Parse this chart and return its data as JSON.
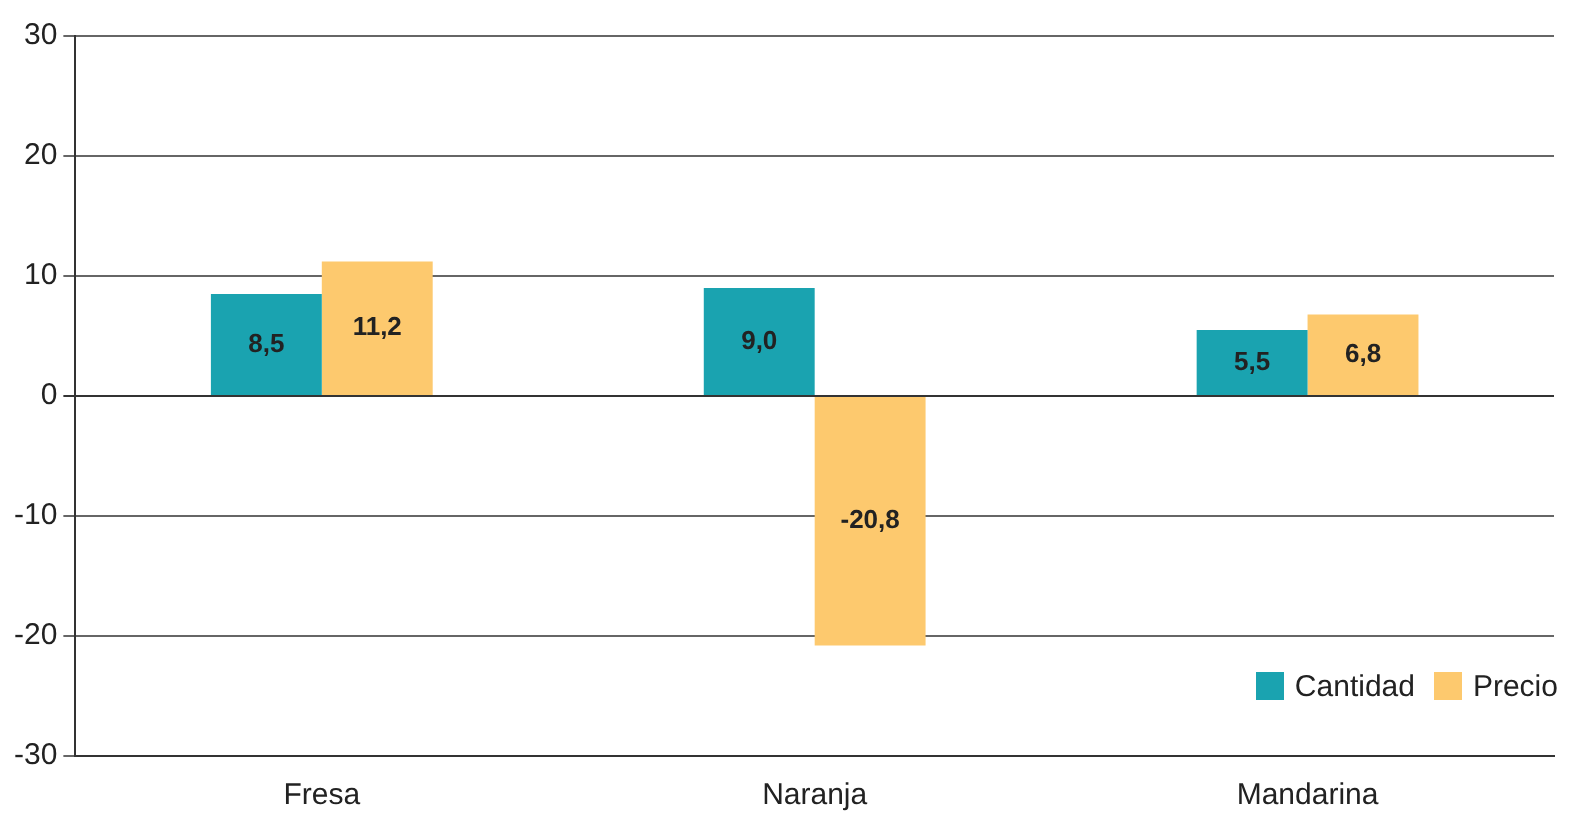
{
  "chart_data": {
    "type": "bar",
    "categories": [
      "Fresa",
      "Naranja",
      "Mandarina"
    ],
    "series": [
      {
        "name": "Cantidad",
        "color": "#1aa3b0",
        "values": [
          8.5,
          9.0,
          5.5
        ],
        "value_labels": [
          "8,5",
          "9,0",
          "5,5"
        ]
      },
      {
        "name": "Precio",
        "color": "#fdc96e",
        "values": [
          11.2,
          -20.8,
          6.8
        ],
        "value_labels": [
          "11,2",
          "-20,8",
          "6,8"
        ]
      }
    ],
    "ylim": [
      -30,
      30
    ],
    "yticks": [
      -30,
      -20,
      -10,
      0,
      10,
      20,
      30
    ],
    "grid": "y",
    "legend": "bottom right"
  }
}
